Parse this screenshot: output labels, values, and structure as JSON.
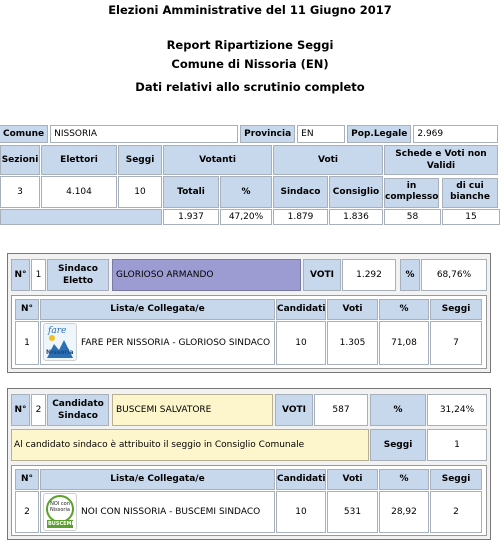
{
  "header": {
    "line1": "Elezioni Amministrative del 11 Giugno 2017",
    "line2": "Report Ripartizione Seggi",
    "line3": "Comune di Nissoria (EN)",
    "line4": "Dati relativi allo scrutinio completo"
  },
  "info": {
    "comune_label": "Comune",
    "comune_value": "NISSORIA",
    "provincia_label": "Provincia",
    "provincia_value": "EN",
    "pop_label": "Pop.Legale",
    "pop_value": "2.969",
    "sezioni_label": "Sezioni",
    "elettori_label": "Elettori",
    "seggi_label": "Seggi",
    "votanti_label": "Votanti",
    "voti_label": "Voti",
    "schede_label": "Schede e Voti non Validi",
    "totali_label": "Totali",
    "pct_label": "%",
    "sindaco_label": "Sindaco",
    "consiglio_label": "Consiglio",
    "in_complesso_label": "in complesso",
    "di_cui_bianche_label": "di cui bianche",
    "sezioni_value": "3",
    "elettori_value": "4.104",
    "seggi_value": "10",
    "totali_value": "1.937",
    "pct_value": "47,20%",
    "sindaco_value": "1.879",
    "consiglio_value": "1.836",
    "in_complesso_value": "58",
    "di_cui_bianche_value": "15"
  },
  "candidate1": {
    "n_label": "N°",
    "n_value": "1",
    "role_label": "Sindaco Eletto",
    "name": "GLORIOSO ARMANDO",
    "voti_label": "VOTI",
    "voti_value": "1.292",
    "pct_label": "%",
    "pct_value": "68,76%",
    "table_headers": [
      "N°",
      "Lista/e Collegata/e",
      "Candidati",
      "Voti",
      "%",
      "Seggi"
    ],
    "list_n": "1",
    "list_logo_text_top": "fare",
    "list_logo_text_bottom": "Nissoria",
    "list_name": "FARE PER NISSORIA - GLORIOSO SINDACO",
    "list_candidati": "10",
    "list_voti": "1.305",
    "list_pct": "71,08",
    "list_seggi": "7"
  },
  "candidate2": {
    "n_label": "N°",
    "n_value": "2",
    "role_label": "Candidato Sindaco",
    "name": "BUSCEMI SALVATORE",
    "voti_label": "VOTI",
    "voti_value": "587",
    "pct_label": "%",
    "pct_value": "31,24%",
    "seat_note": "Al candidato sindaco è attribuito il seggio in Consiglio Comunale",
    "seggi_label": "Seggi",
    "seggi_value": "1",
    "table_headers": [
      "N°",
      "Lista/e Collegata/e",
      "Candidati",
      "Voti",
      "%",
      "Seggi"
    ],
    "list_n": "2",
    "list_logo_text_top": "NOI con Nissoria",
    "list_logo_text_bottom": "BUSCEMI",
    "list_name": "NOI CON NISSORIA - BUSCEMI SINDACO",
    "list_candidati": "10",
    "list_voti": "531",
    "list_pct": "28,92",
    "list_seggi": "2"
  }
}
